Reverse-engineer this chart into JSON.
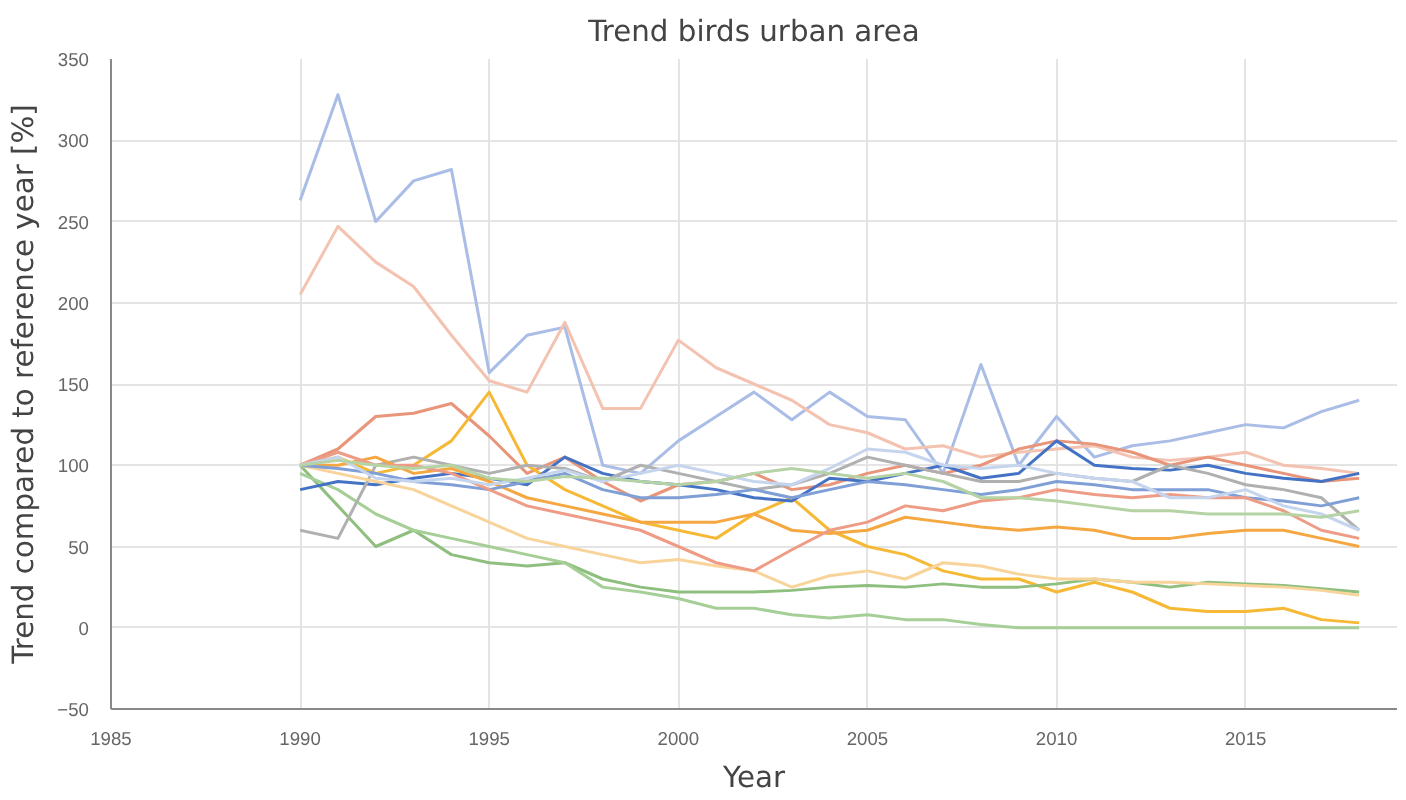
{
  "chart_data": {
    "type": "line",
    "title": "Trend birds urban area",
    "xlabel": "Year",
    "ylabel": "Trend compared to reference year [%]",
    "x": [
      1990,
      1991,
      1992,
      1993,
      1994,
      1995,
      1996,
      1997,
      1998,
      1999,
      2000,
      2001,
      2002,
      2003,
      2004,
      2005,
      2006,
      2007,
      2008,
      2009,
      2010,
      2011,
      2012,
      2013,
      2014,
      2015,
      2016,
      2017,
      2018
    ],
    "xlim": [
      1985,
      2019
    ],
    "xticks": [
      1985,
      1990,
      1995,
      2000,
      2005,
      2010,
      2015
    ],
    "ylim": [
      -50,
      350
    ],
    "yticks": [
      -50,
      0,
      50,
      100,
      150,
      200,
      250,
      300,
      350
    ],
    "grid": true,
    "series": [
      {
        "color": "#a9bde6",
        "values": [
          263,
          328,
          250,
          275,
          282,
          157,
          180,
          185,
          100,
          95,
          115,
          130,
          145,
          128,
          145,
          130,
          128,
          95,
          162,
          100,
          130,
          105,
          112,
          115,
          120,
          125,
          123,
          133,
          140
        ]
      },
      {
        "color": "#f4c2b0",
        "values": [
          205,
          247,
          225,
          210,
          180,
          152,
          145,
          188,
          135,
          135,
          177,
          160,
          150,
          140,
          125,
          120,
          110,
          112,
          105,
          108,
          110,
          112,
          105,
          103,
          105,
          108,
          100,
          98,
          95
        ]
      },
      {
        "color": "#e8957a",
        "values": [
          100,
          110,
          130,
          132,
          138,
          118,
          95,
          105,
          90,
          78,
          88,
          90,
          95,
          85,
          88,
          95,
          100,
          95,
          100,
          110,
          115,
          113,
          108,
          100,
          105,
          100,
          95,
          90,
          92
        ]
      },
      {
        "color": "#f5b935",
        "values": [
          100,
          105,
          95,
          100,
          115,
          145,
          100,
          85,
          75,
          65,
          60,
          55,
          70,
          80,
          60,
          50,
          45,
          35,
          30,
          30,
          22,
          28,
          22,
          12,
          10,
          10,
          12,
          5,
          3
        ]
      },
      {
        "color": "#8fbf7e",
        "values": [
          100,
          75,
          50,
          60,
          45,
          40,
          38,
          40,
          30,
          25,
          22,
          22,
          22,
          23,
          25,
          26,
          25,
          27,
          25,
          25,
          27,
          30,
          28,
          25,
          28,
          27,
          26,
          24,
          22
        ]
      },
      {
        "color": "#a6cf98",
        "values": [
          95,
          85,
          70,
          60,
          55,
          50,
          45,
          40,
          25,
          22,
          18,
          12,
          12,
          8,
          6,
          8,
          5,
          5,
          2,
          0,
          0,
          0,
          0,
          0,
          0,
          0,
          0,
          0,
          0
        ]
      },
      {
        "color": "#4472c4",
        "values": [
          85,
          90,
          88,
          92,
          95,
          92,
          88,
          105,
          95,
          90,
          88,
          85,
          80,
          78,
          92,
          90,
          95,
          100,
          92,
          95,
          115,
          100,
          98,
          97,
          100,
          95,
          92,
          90,
          95
        ]
      },
      {
        "color": "#b0b0b0",
        "values": [
          60,
          55,
          100,
          105,
          100,
          95,
          100,
          98,
          90,
          100,
          95,
          90,
          85,
          88,
          95,
          105,
          100,
          95,
          90,
          90,
          95,
          92,
          90,
          100,
          95,
          88,
          85,
          80,
          60
        ]
      },
      {
        "color": "#f8d49a",
        "values": [
          100,
          95,
          90,
          85,
          75,
          65,
          55,
          50,
          45,
          40,
          42,
          38,
          35,
          25,
          32,
          35,
          30,
          40,
          38,
          33,
          30,
          30,
          28,
          28,
          27,
          26,
          25,
          23,
          20
        ]
      },
      {
        "color": "#f5a742",
        "values": [
          100,
          100,
          105,
          95,
          98,
          90,
          80,
          75,
          70,
          65,
          65,
          65,
          70,
          60,
          58,
          60,
          68,
          65,
          62,
          60,
          62,
          60,
          55,
          55,
          58,
          60,
          60,
          55,
          50
        ]
      },
      {
        "color": "#7f9fd6",
        "values": [
          100,
          98,
          95,
          90,
          88,
          85,
          90,
          95,
          85,
          80,
          80,
          82,
          85,
          80,
          85,
          90,
          88,
          85,
          82,
          85,
          90,
          88,
          85,
          85,
          85,
          80,
          78,
          75,
          80
        ]
      },
      {
        "color": "#ee9c86",
        "values": [
          100,
          108,
          100,
          100,
          95,
          85,
          75,
          70,
          65,
          60,
          50,
          40,
          35,
          48,
          60,
          65,
          75,
          72,
          78,
          80,
          85,
          82,
          80,
          82,
          80,
          80,
          72,
          60,
          55
        ]
      },
      {
        "color": "#c6d5ee",
        "values": [
          100,
          105,
          92,
          90,
          92,
          88,
          92,
          97,
          90,
          95,
          100,
          95,
          90,
          88,
          98,
          110,
          108,
          100,
          98,
          100,
          95,
          92,
          90,
          80,
          80,
          85,
          75,
          70,
          60
        ]
      },
      {
        "color": "#b5d3a5",
        "values": [
          100,
          103,
          100,
          98,
          100,
          92,
          90,
          93,
          92,
          90,
          88,
          90,
          95,
          98,
          95,
          92,
          95,
          90,
          80,
          80,
          78,
          75,
          72,
          72,
          70,
          70,
          70,
          68,
          72
        ]
      }
    ]
  }
}
